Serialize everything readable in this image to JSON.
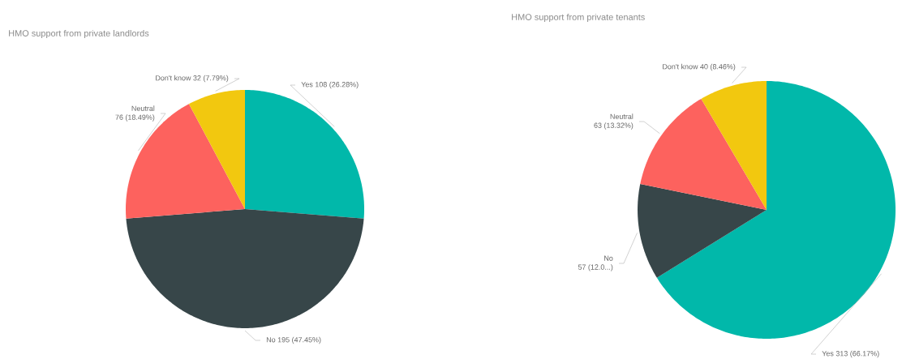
{
  "chart_data": [
    {
      "type": "pie",
      "title": "HMO support from private landlords",
      "categories": [
        "Yes",
        "No",
        "Neutral",
        "Don't know"
      ],
      "values": [
        108,
        195,
        76,
        32
      ],
      "colors": [
        "#01b8aa",
        "#374649",
        "#fd625e",
        "#f2c80f"
      ],
      "value_labels": [
        "108 (26.28%)",
        "195 (47.45%)",
        "76 (18.49%)",
        "32 (7.79%)"
      ]
    },
    {
      "type": "pie",
      "title": "HMO support from private tenants",
      "categories": [
        "Yes",
        "No",
        "Neutral",
        "Don't know"
      ],
      "values": [
        313,
        57,
        63,
        40
      ],
      "colors": [
        "#01b8aa",
        "#374649",
        "#fd625e",
        "#f2c80f"
      ],
      "value_labels": [
        "313 (66.17%)",
        "57 (12.0...)",
        "63 (13.32%)",
        "40 (8.46%)"
      ]
    }
  ]
}
